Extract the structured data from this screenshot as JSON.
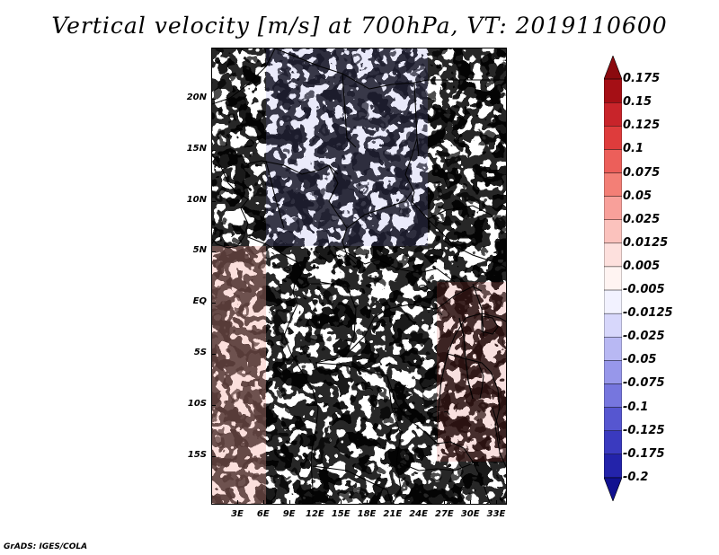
{
  "title": "Vertical velocity [m/s] at 700hPa, VT: 2019110600",
  "credit": "GrADS: IGES/COLA",
  "map": {
    "lat_labels": [
      "20N",
      "15N",
      "10N",
      "5N",
      "EQ",
      "5S",
      "10S",
      "15S"
    ],
    "lon_labels": [
      "3E",
      "6E",
      "9E",
      "12E",
      "15E",
      "18E",
      "21E",
      "24E",
      "27E",
      "30E",
      "33E"
    ]
  },
  "colorbar": {
    "labels": [
      "0.175",
      "0.15",
      "0.125",
      "0.1",
      "0.075",
      "0.05",
      "0.025",
      "0.0125",
      "0.005",
      "-0.005",
      "-0.0125",
      "-0.025",
      "-0.05",
      "-0.075",
      "-0.1",
      "-0.125",
      "-0.175",
      "-0.2"
    ],
    "colors": [
      "#a50f15",
      "#c8242a",
      "#de3c3c",
      "#ec5f5a",
      "#f37f76",
      "#f8a09a",
      "#fbc2bd",
      "#fde0dd",
      "#fff4f2",
      "#f2f2ff",
      "#d7d7fb",
      "#b8b8f3",
      "#9797ea",
      "#7676de",
      "#5656d0",
      "#3a3abf",
      "#2323aa",
      "#111190"
    ]
  }
}
